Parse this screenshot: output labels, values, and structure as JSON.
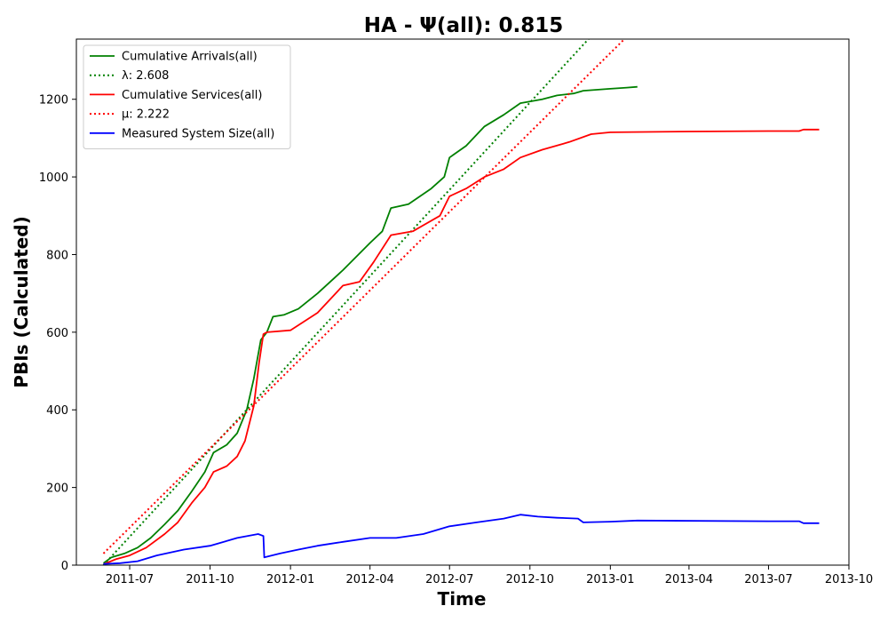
{
  "chart_data": {
    "type": "line",
    "title": "HA -  Ψ(all): 0.815",
    "xlabel": "Time",
    "ylabel": "PBIs (Calculated)",
    "x_type": "date",
    "xlim": [
      "2011-05-01",
      "2013-10-01"
    ],
    "ylim": [
      0,
      1355
    ],
    "x_ticks": [
      {
        "date": "2011-07-01",
        "label": "2011-07"
      },
      {
        "date": "2011-10-01",
        "label": "2011-10"
      },
      {
        "date": "2012-01-01",
        "label": "2012-01"
      },
      {
        "date": "2012-04-01",
        "label": "2012-04"
      },
      {
        "date": "2012-07-01",
        "label": "2012-07"
      },
      {
        "date": "2012-10-01",
        "label": "2012-10"
      },
      {
        "date": "2013-01-01",
        "label": "2013-01"
      },
      {
        "date": "2013-04-01",
        "label": "2013-04"
      },
      {
        "date": "2013-07-01",
        "label": "2013-07"
      },
      {
        "date": "2013-10-01",
        "label": "2013-10"
      }
    ],
    "y_ticks": [
      0,
      200,
      400,
      600,
      800,
      1000,
      1200
    ],
    "grid": false,
    "legend_position": "top-left",
    "series": [
      {
        "name": "Cumulative Arrivals(all)",
        "color": "#008000",
        "style": "solid",
        "points": [
          [
            "2011-06-01",
            5
          ],
          [
            "2011-06-10",
            20
          ],
          [
            "2011-06-25",
            30
          ],
          [
            "2011-07-10",
            45
          ],
          [
            "2011-07-25",
            70
          ],
          [
            "2011-08-10",
            105
          ],
          [
            "2011-08-25",
            140
          ],
          [
            "2011-09-10",
            190
          ],
          [
            "2011-09-25",
            240
          ],
          [
            "2011-10-05",
            290
          ],
          [
            "2011-10-20",
            310
          ],
          [
            "2011-11-01",
            340
          ],
          [
            "2011-11-12",
            400
          ],
          [
            "2011-11-20",
            480
          ],
          [
            "2011-11-28",
            580
          ],
          [
            "2011-12-05",
            600
          ],
          [
            "2011-12-12",
            640
          ],
          [
            "2011-12-25",
            645
          ],
          [
            "2012-01-10",
            660
          ],
          [
            "2012-02-01",
            700
          ],
          [
            "2012-03-01",
            760
          ],
          [
            "2012-04-01",
            830
          ],
          [
            "2012-04-15",
            860
          ],
          [
            "2012-04-25",
            920
          ],
          [
            "2012-05-15",
            930
          ],
          [
            "2012-06-10",
            970
          ],
          [
            "2012-06-25",
            1000
          ],
          [
            "2012-07-01",
            1050
          ],
          [
            "2012-07-20",
            1080
          ],
          [
            "2012-08-10",
            1130
          ],
          [
            "2012-09-01",
            1160
          ],
          [
            "2012-09-20",
            1190
          ],
          [
            "2012-10-15",
            1200
          ],
          [
            "2012-11-01",
            1210
          ],
          [
            "2012-11-20",
            1215
          ],
          [
            "2012-12-01",
            1222
          ],
          [
            "2013-01-01",
            1227
          ],
          [
            "2013-01-20",
            1230
          ],
          [
            "2013-02-01",
            1232
          ]
        ]
      },
      {
        "name": "λ: 2.608",
        "color": "#008000",
        "style": "dotted",
        "points": [
          [
            "2011-06-01",
            0
          ],
          [
            "2012-12-09",
            1360
          ]
        ]
      },
      {
        "name": "Cumulative Services(all)",
        "color": "#ff0000",
        "style": "solid",
        "points": [
          [
            "2011-06-01",
            2
          ],
          [
            "2011-06-15",
            15
          ],
          [
            "2011-07-01",
            25
          ],
          [
            "2011-07-20",
            45
          ],
          [
            "2011-08-10",
            80
          ],
          [
            "2011-08-25",
            110
          ],
          [
            "2011-09-10",
            160
          ],
          [
            "2011-09-25",
            200
          ],
          [
            "2011-10-05",
            240
          ],
          [
            "2011-10-20",
            255
          ],
          [
            "2011-11-01",
            280
          ],
          [
            "2011-11-10",
            320
          ],
          [
            "2011-11-20",
            410
          ],
          [
            "2011-11-26",
            520
          ],
          [
            "2011-12-01",
            595
          ],
          [
            "2011-12-05",
            600
          ],
          [
            "2012-01-01",
            605
          ],
          [
            "2012-02-01",
            650
          ],
          [
            "2012-03-01",
            720
          ],
          [
            "2012-03-20",
            730
          ],
          [
            "2012-04-05",
            780
          ],
          [
            "2012-04-25",
            850
          ],
          [
            "2012-05-20",
            860
          ],
          [
            "2012-06-20",
            900
          ],
          [
            "2012-07-01",
            950
          ],
          [
            "2012-07-20",
            970
          ],
          [
            "2012-08-10",
            1000
          ],
          [
            "2012-09-01",
            1020
          ],
          [
            "2012-09-20",
            1050
          ],
          [
            "2012-10-15",
            1070
          ],
          [
            "2012-11-15",
            1090
          ],
          [
            "2012-12-10",
            1110
          ],
          [
            "2013-01-01",
            1115
          ],
          [
            "2013-04-01",
            1117
          ],
          [
            "2013-07-01",
            1118
          ],
          [
            "2013-08-05",
            1118
          ],
          [
            "2013-08-10",
            1122
          ],
          [
            "2013-08-28",
            1122
          ]
        ]
      },
      {
        "name": "μ: 2.222",
        "color": "#ff0000",
        "style": "dotted",
        "points": [
          [
            "2011-06-01",
            30
          ],
          [
            "2013-01-18",
            1357
          ]
        ]
      },
      {
        "name": "Measured System Size(all)",
        "color": "#0000ff",
        "style": "solid",
        "points": [
          [
            "2011-06-01",
            3
          ],
          [
            "2011-06-20",
            5
          ],
          [
            "2011-07-10",
            10
          ],
          [
            "2011-08-01",
            25
          ],
          [
            "2011-09-01",
            40
          ],
          [
            "2011-10-01",
            50
          ],
          [
            "2011-11-01",
            70
          ],
          [
            "2011-11-25",
            80
          ],
          [
            "2011-12-01",
            75
          ],
          [
            "2011-12-02",
            20
          ],
          [
            "2011-12-20",
            30
          ],
          [
            "2012-01-10",
            40
          ],
          [
            "2012-02-01",
            50
          ],
          [
            "2012-03-01",
            60
          ],
          [
            "2012-04-01",
            70
          ],
          [
            "2012-05-01",
            70
          ],
          [
            "2012-06-01",
            80
          ],
          [
            "2012-07-01",
            100
          ],
          [
            "2012-08-01",
            110
          ],
          [
            "2012-09-01",
            120
          ],
          [
            "2012-09-20",
            130
          ],
          [
            "2012-10-10",
            125
          ],
          [
            "2012-11-01",
            122
          ],
          [
            "2012-11-25",
            120
          ],
          [
            "2012-12-01",
            110
          ],
          [
            "2013-01-01",
            112
          ],
          [
            "2013-02-01",
            115
          ],
          [
            "2013-07-01",
            113
          ],
          [
            "2013-08-05",
            113
          ],
          [
            "2013-08-10",
            108
          ],
          [
            "2013-08-28",
            108
          ]
        ]
      }
    ]
  }
}
